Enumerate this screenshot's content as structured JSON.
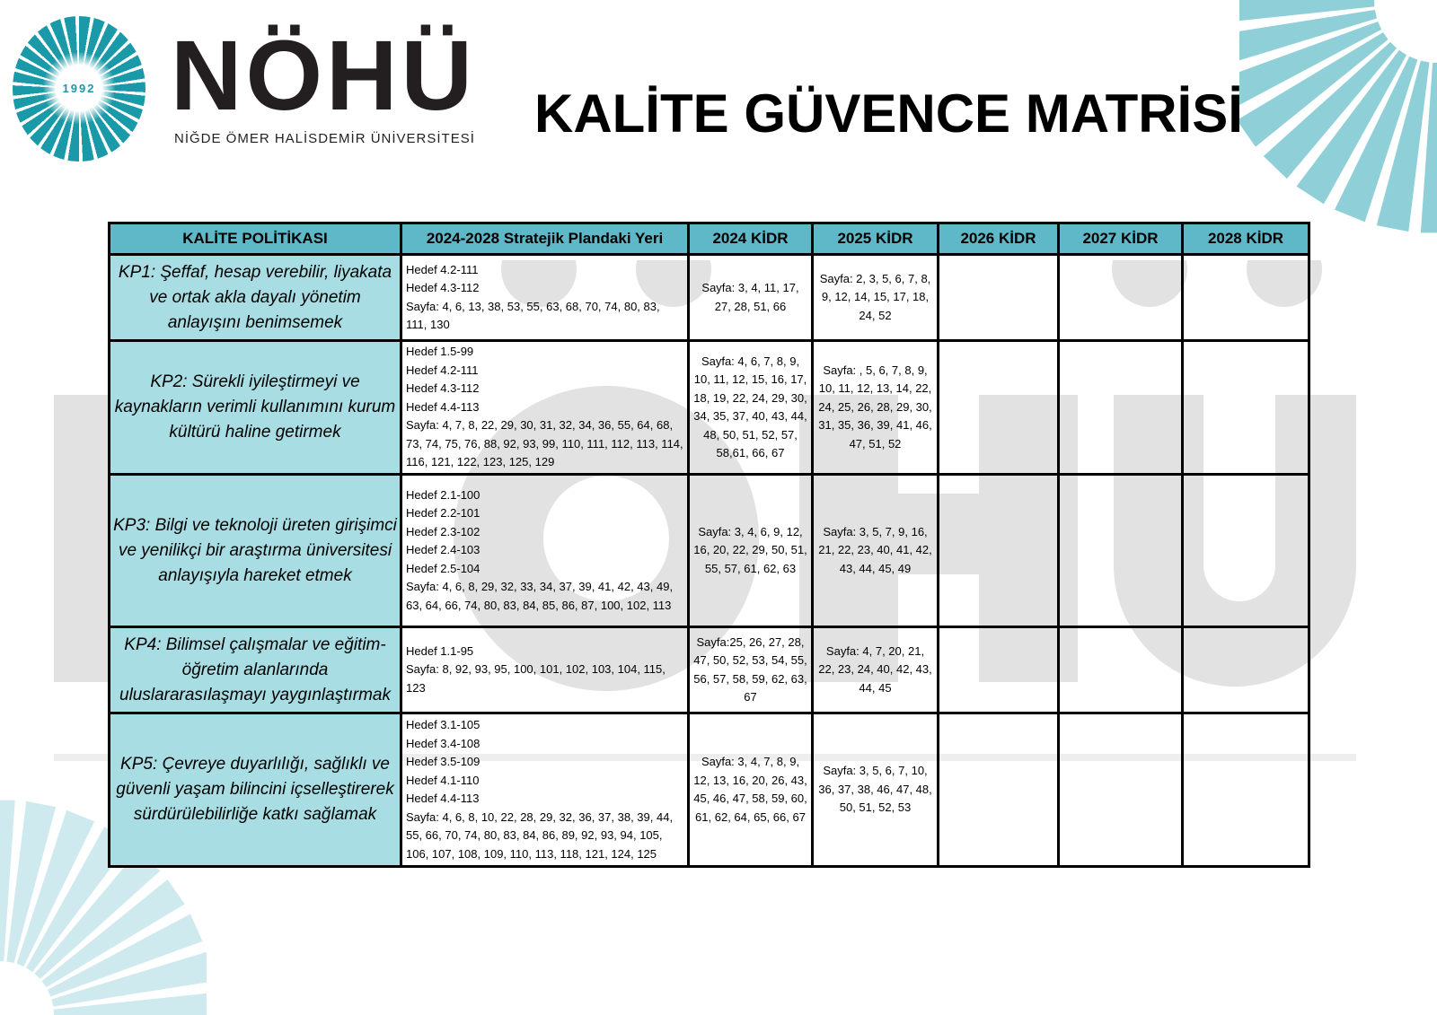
{
  "logo": {
    "year": "1992",
    "wordmark": "NÖHÜ",
    "subtitle": "NİĞDE ÖMER HALİSDEMİR ÜNİVERSİTESİ",
    "brand_color": "#1a9aa8"
  },
  "watermark": {
    "big": "NÖHÜ",
    "sub": "NİĞDE ÖMER HALİSDEMİR ÜNİVERSİTESİ"
  },
  "title": "KALİTE GÜVENCE MATRİSİ",
  "colors": {
    "header_bg": "#5fb8c8",
    "policy_bg": "#a8dde3"
  },
  "table": {
    "headers": [
      "KALİTE POLİTİKASI",
      "2024-2028 Stratejik Plandaki Yeri",
      "2024 KİDR",
      "2025 KİDR",
      "2026 KİDR",
      "2027 KİDR",
      "2028 KİDR"
    ],
    "rows": [
      {
        "policy": "KP1: Şeffaf, hesap verebilir, liyakata ve ortak akla dayalı yönetim anlayışını benimsemek",
        "plan": [
          "Hedef 4.2-111",
          "Hedef 4.3-112",
          "Sayfa: 4, 6, 13, 38, 53, 55, 63, 68, 70, 74, 80, 83, 111, 130"
        ],
        "k2024": "Sayfa: 3, 4, 11, 17, 27, 28, 51, 66",
        "k2025": "Sayfa: 2, 3, 5, 6, 7, 8, 9, 12, 14, 15, 17, 18, 24, 52",
        "k2026": "",
        "k2027": "",
        "k2028": ""
      },
      {
        "policy": "KP2: Sürekli iyileştirmeyi ve kaynakların verimli kullanımını kurum kültürü haline getirmek",
        "plan": [
          "Hedef 1.5-99",
          "Hedef 4.2-111",
          "Hedef 4.3-112",
          "Hedef 4.4-113",
          "Sayfa: 4, 7, 8, 22, 29, 30, 31, 32, 34, 36, 55, 64, 68, 73, 74, 75, 76, 88, 92, 93, 99, 110, 111, 112, 113, 114, 116, 121, 122, 123, 125, 129"
        ],
        "k2024": "Sayfa: 4, 6, 7, 8, 9, 10, 11, 12, 15, 16, 17, 18, 19, 22, 24, 29, 30, 34, 35, 37, 40, 43, 44, 48, 50, 51, 52, 57, 58,61, 66, 67",
        "k2025": "Sayfa: , 5, 6, 7, 8, 9, 10, 11, 12, 13, 14, 22, 24, 25, 26, 28, 29, 30, 31, 35, 36, 39, 41, 46, 47, 51, 52",
        "k2026": "",
        "k2027": "",
        "k2028": ""
      },
      {
        "policy": "KP3: Bilgi ve teknoloji üreten girişimci ve yenilikçi bir araştırma üniversitesi anlayışıyla hareket etmek",
        "plan": [
          "Hedef 2.1-100",
          "Hedef 2.2-101",
          "Hedef 2.3-102",
          "Hedef 2.4-103",
          "Hedef 2.5-104",
          "Sayfa: 4, 6, 8, 29, 32, 33, 34, 37, 39, 41, 42, 43, 49, 63, 64, 66, 74, 80, 83, 84, 85, 86, 87, 100, 102, 113"
        ],
        "k2024": "Sayfa: 3, 4, 6, 9, 12, 16, 20, 22, 29, 50, 51, 55, 57, 61, 62, 63",
        "k2025": "Sayfa: 3, 5, 7, 9, 16, 21, 22, 23, 40, 41, 42, 43, 44, 45, 49",
        "k2026": "",
        "k2027": "",
        "k2028": ""
      },
      {
        "policy": "KP4: Bilimsel çalışmalar ve eğitim-öğretim alanlarında uluslararasılaşmayı yaygınlaştırmak",
        "plan": [
          "Hedef 1.1-95",
          "Sayfa: 8, 92, 93, 95, 100, 101, 102, 103, 104, 115, 123"
        ],
        "k2024": "Sayfa:25, 26, 27, 28, 47, 50, 52, 53, 54, 55, 56, 57, 58, 59, 62, 63, 67",
        "k2025": "Sayfa: 4, 7, 20, 21, 22, 23, 24, 40, 42, 43, 44, 45",
        "k2026": "",
        "k2027": "",
        "k2028": ""
      },
      {
        "policy": "KP5: Çevreye duyarlılığı, sağlıklı ve güvenli yaşam bilincini içselleştirerek sürdürülebilirliğe katkı sağlamak",
        "plan": [
          "Hedef 3.1-105",
          "Hedef 3.4-108",
          "Hedef 3.5-109",
          "Hedef 4.1-110",
          "Hedef 4.4-113",
          "Sayfa: 4, 6, 8, 10, 22, 28, 29, 32, 36, 37, 38, 39, 44, 55, 66, 70, 74, 80, 83, 84, 86, 89, 92, 93, 94, 105, 106, 107, 108, 109, 110, 113, 118, 121, 124, 125"
        ],
        "k2024": "Sayfa: 3, 4, 7, 8, 9, 12, 13, 16, 20, 26, 43, 45, 46, 47, 58, 59, 60, 61, 62, 64, 65, 66, 67",
        "k2025": "Sayfa: 3, 5, 6, 7, 10, 36, 37, 38, 46, 47, 48, 50, 51, 52, 53",
        "k2026": "",
        "k2027": "",
        "k2028": ""
      }
    ]
  }
}
